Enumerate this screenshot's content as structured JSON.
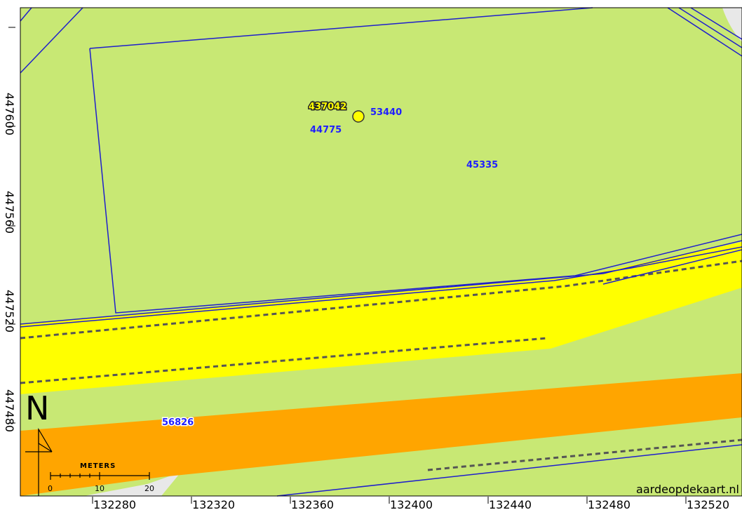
{
  "map": {
    "credit": "aardeopdekaart.nl",
    "x_ticks": [
      "132280",
      "132320",
      "132360",
      "132400",
      "132440",
      "132480",
      "132520"
    ],
    "y_ticks": [
      "447600",
      "447560",
      "447520",
      "447480"
    ],
    "north_label": "N",
    "scale_bar": {
      "unit_label": "METERS",
      "labels": [
        "0",
        "10",
        "20"
      ]
    },
    "marker_label": "437042",
    "parcel_labels": [
      "53440",
      "44775",
      "45335",
      "56826"
    ],
    "colors": {
      "land": "#c8e874",
      "road": "#ffff00",
      "highway": "#ffa500",
      "parcel_line": "#1f1fcc",
      "marker": "#ffff00",
      "unpaved": "#e8e8e8"
    }
  }
}
